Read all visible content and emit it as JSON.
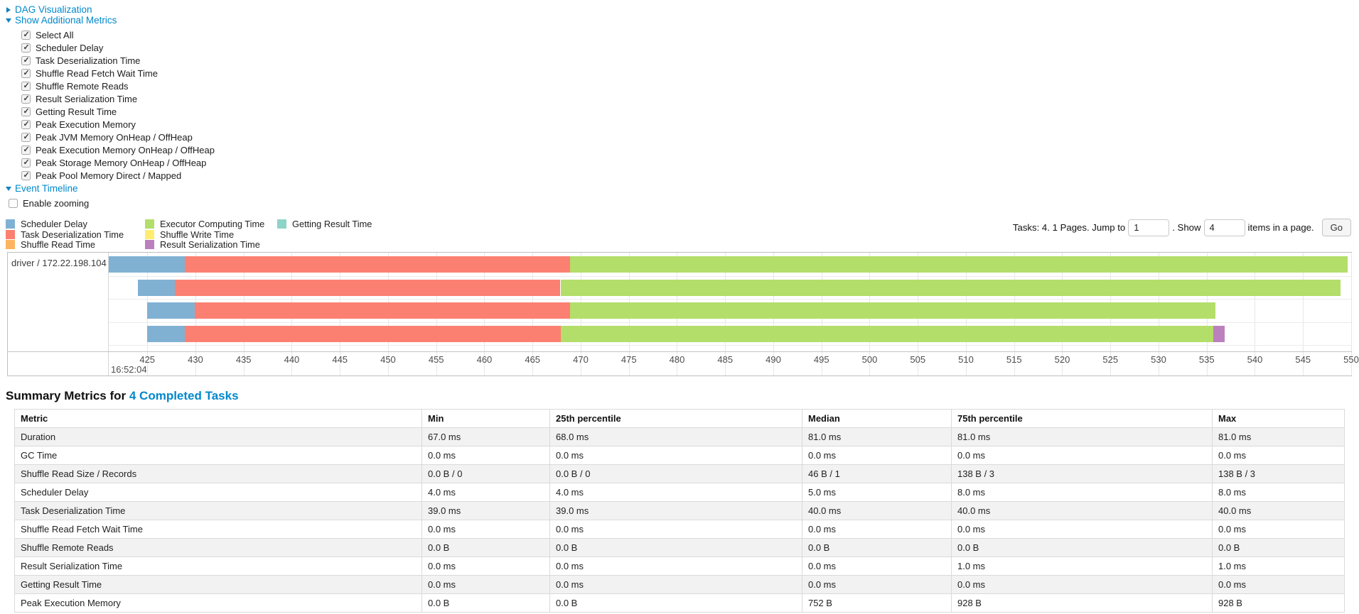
{
  "controls": {
    "dag_label": "DAG Visualization",
    "metrics_toggle_label": "Show Additional Metrics",
    "timeline_toggle_label": "Event Timeline",
    "enable_zooming": {
      "label": "Enable zooming",
      "checked": false
    },
    "checkboxes": [
      {
        "label": "Select All",
        "checked": true
      },
      {
        "label": "Scheduler Delay",
        "checked": true
      },
      {
        "label": "Task Deserialization Time",
        "checked": true
      },
      {
        "label": "Shuffle Read Fetch Wait Time",
        "checked": true
      },
      {
        "label": "Shuffle Remote Reads",
        "checked": true
      },
      {
        "label": "Result Serialization Time",
        "checked": true
      },
      {
        "label": "Getting Result Time",
        "checked": true
      },
      {
        "label": "Peak Execution Memory",
        "checked": true
      },
      {
        "label": "Peak JVM Memory OnHeap / OffHeap",
        "checked": true
      },
      {
        "label": "Peak Execution Memory OnHeap / OffHeap",
        "checked": true
      },
      {
        "label": "Peak Storage Memory OnHeap / OffHeap",
        "checked": true
      },
      {
        "label": "Peak Pool Memory Direct / Mapped",
        "checked": true
      }
    ]
  },
  "pagination": {
    "label_tasks": "Tasks: 4. 1 Pages. Jump to",
    "jump_value": "1",
    "label_show": ". Show",
    "show_value": "4",
    "label_items": "items in a page.",
    "go_label": "Go"
  },
  "chart_data": {
    "type": "timeline",
    "group": "driver / 172.22.198.104",
    "axis": {
      "min": 421,
      "max": 550,
      "major_label": "16:52:04",
      "ticks": [
        425,
        430,
        435,
        440,
        445,
        450,
        455,
        460,
        465,
        470,
        475,
        480,
        485,
        490,
        495,
        500,
        505,
        510,
        515,
        520,
        525,
        530,
        535,
        540,
        545,
        550
      ]
    },
    "series_colors": {
      "scheduler_delay": "#80B1D3",
      "task_deserialization": "#FB8072",
      "shuffle_read": "#FDB462",
      "executor_computing": "#B3DE69",
      "shuffle_write": "#FFED6F",
      "result_serialization": "#BC80BD",
      "getting_result": "#8DD3C7"
    },
    "legend_columns": [
      [
        {
          "metric": "scheduler_delay",
          "label": "Scheduler Delay"
        },
        {
          "metric": "task_deserialization",
          "label": "Task Deserialization Time"
        },
        {
          "metric": "shuffle_read",
          "label": "Shuffle Read Time"
        }
      ],
      [
        {
          "metric": "executor_computing",
          "label": "Executor Computing Time"
        },
        {
          "metric": "shuffle_write",
          "label": "Shuffle Write Time"
        },
        {
          "metric": "result_serialization",
          "label": "Result Serialization Time"
        }
      ],
      [
        {
          "metric": "getting_result",
          "label": "Getting Result Time"
        }
      ]
    ],
    "tasks": [
      {
        "segments": [
          {
            "metric": "scheduler_delay",
            "start": 421.0,
            "end": 428.9
          },
          {
            "metric": "task_deserialization",
            "start": 428.9,
            "end": 468.9
          },
          {
            "metric": "executor_computing",
            "start": 468.9,
            "end": 549.6
          }
        ]
      },
      {
        "segments": [
          {
            "metric": "scheduler_delay",
            "start": 424.0,
            "end": 427.9
          },
          {
            "metric": "task_deserialization",
            "start": 427.9,
            "end": 467.9
          },
          {
            "metric": "executor_computing",
            "start": 467.9,
            "end": 548.9
          }
        ]
      },
      {
        "segments": [
          {
            "metric": "scheduler_delay",
            "start": 425.0,
            "end": 429.9
          },
          {
            "metric": "task_deserialization",
            "start": 429.9,
            "end": 468.9
          },
          {
            "metric": "executor_computing",
            "start": 468.9,
            "end": 535.9
          }
        ]
      },
      {
        "segments": [
          {
            "metric": "scheduler_delay",
            "start": 425.0,
            "end": 428.9
          },
          {
            "metric": "task_deserialization",
            "start": 428.9,
            "end": 467.9
          },
          {
            "metric": "executor_computing",
            "start": 467.9,
            "end": 535.7
          },
          {
            "metric": "result_serialization",
            "start": 535.7,
            "end": 536.9
          }
        ]
      }
    ]
  },
  "summary": {
    "title_prefix": "Summary Metrics for",
    "title_link": "4 Completed Tasks",
    "table": {
      "headers": [
        "Metric",
        "Min",
        "25th percentile",
        "Median",
        "75th percentile",
        "Max"
      ],
      "rows": [
        [
          "Duration",
          "67.0 ms",
          "68.0 ms",
          "81.0 ms",
          "81.0 ms",
          "81.0 ms"
        ],
        [
          "GC Time",
          "0.0 ms",
          "0.0 ms",
          "0.0 ms",
          "0.0 ms",
          "0.0 ms"
        ],
        [
          "Shuffle Read Size / Records",
          "0.0 B / 0",
          "0.0 B / 0",
          "46 B / 1",
          "138 B / 3",
          "138 B / 3"
        ],
        [
          "Scheduler Delay",
          "4.0 ms",
          "4.0 ms",
          "5.0 ms",
          "8.0 ms",
          "8.0 ms"
        ],
        [
          "Task Deserialization Time",
          "39.0 ms",
          "39.0 ms",
          "40.0 ms",
          "40.0 ms",
          "40.0 ms"
        ],
        [
          "Shuffle Read Fetch Wait Time",
          "0.0 ms",
          "0.0 ms",
          "0.0 ms",
          "0.0 ms",
          "0.0 ms"
        ],
        [
          "Shuffle Remote Reads",
          "0.0 B",
          "0.0 B",
          "0.0 B",
          "0.0 B",
          "0.0 B"
        ],
        [
          "Result Serialization Time",
          "0.0 ms",
          "0.0 ms",
          "0.0 ms",
          "1.0 ms",
          "1.0 ms"
        ],
        [
          "Getting Result Time",
          "0.0 ms",
          "0.0 ms",
          "0.0 ms",
          "0.0 ms",
          "0.0 ms"
        ],
        [
          "Peak Execution Memory",
          "0.0 B",
          "0.0 B",
          "752 B",
          "928 B",
          "928 B"
        ]
      ]
    }
  }
}
